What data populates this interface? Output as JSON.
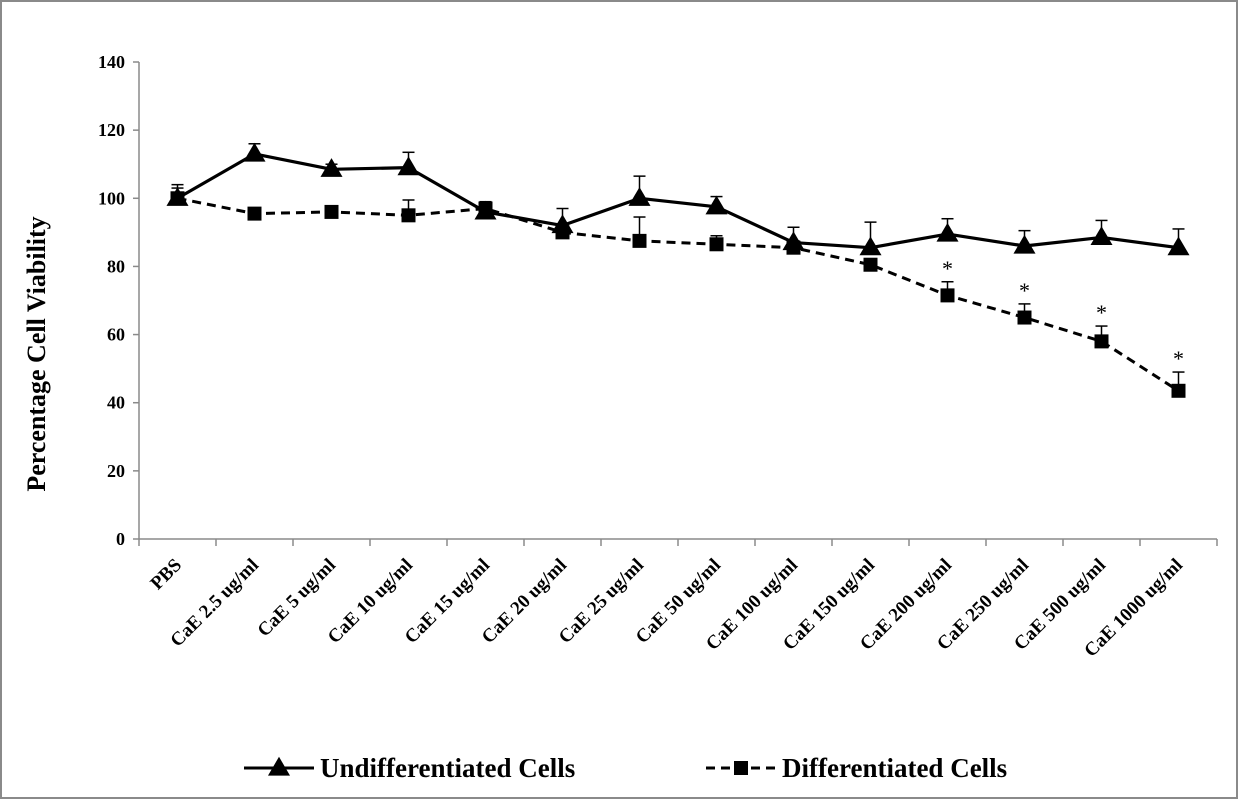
{
  "chart_data": {
    "type": "line",
    "title": "",
    "xlabel": "",
    "ylabel": "Percentage Cell Viability",
    "ylim": [
      0,
      140
    ],
    "yticks": [
      0,
      20,
      40,
      60,
      80,
      100,
      120,
      140
    ],
    "grid": false,
    "legend_position": "bottom",
    "categories": [
      "PBS",
      "CaE 2.5 ug/ml",
      "CaE 5 ug/ml",
      "CaE 10 ug/ml",
      "CaE 15 ug/ml",
      "CaE 20 ug/ml",
      "CaE 25 ug/ml",
      "CaE 50 ug/ml",
      "CaE 100 ug/ml",
      "CaE 150 ug/ml",
      "CaE 200 ug/ml",
      "CaE 250 ug/ml",
      "CaE 500 ug/ml",
      "CaE 1000 ug/ml"
    ],
    "series": [
      {
        "name": "Undifferentiated Cells",
        "line_style": "solid",
        "marker": "triangle",
        "color": "#000000",
        "values": [
          100,
          113,
          108.5,
          109,
          96,
          92,
          100,
          97.5,
          87,
          85.5,
          89.5,
          86,
          88.5,
          85.5
        ],
        "error": [
          4,
          3,
          1.5,
          4.5,
          1.5,
          5,
          6.5,
          3,
          4.5,
          7.5,
          4.5,
          4.5,
          5,
          5.5
        ]
      },
      {
        "name": "Differentiated Cells",
        "line_style": "dashed",
        "marker": "square",
        "color": "#000000",
        "values": [
          100,
          95.5,
          96,
          95,
          97,
          90,
          87.5,
          86.5,
          85.5,
          80.5,
          71.5,
          65,
          58,
          43.5
        ],
        "error": [
          3,
          0,
          0,
          4.5,
          2,
          2,
          7,
          2.5,
          2,
          1.5,
          4,
          4,
          4.5,
          5.5
        ]
      }
    ],
    "annotations": [
      {
        "category": "CaE 200 ug/ml",
        "text": "*"
      },
      {
        "category": "CaE 250 ug/ml",
        "text": "*"
      },
      {
        "category": "CaE 500 ug/ml",
        "text": "*"
      },
      {
        "category": "CaE 1000 ug/ml",
        "text": "*"
      }
    ]
  }
}
